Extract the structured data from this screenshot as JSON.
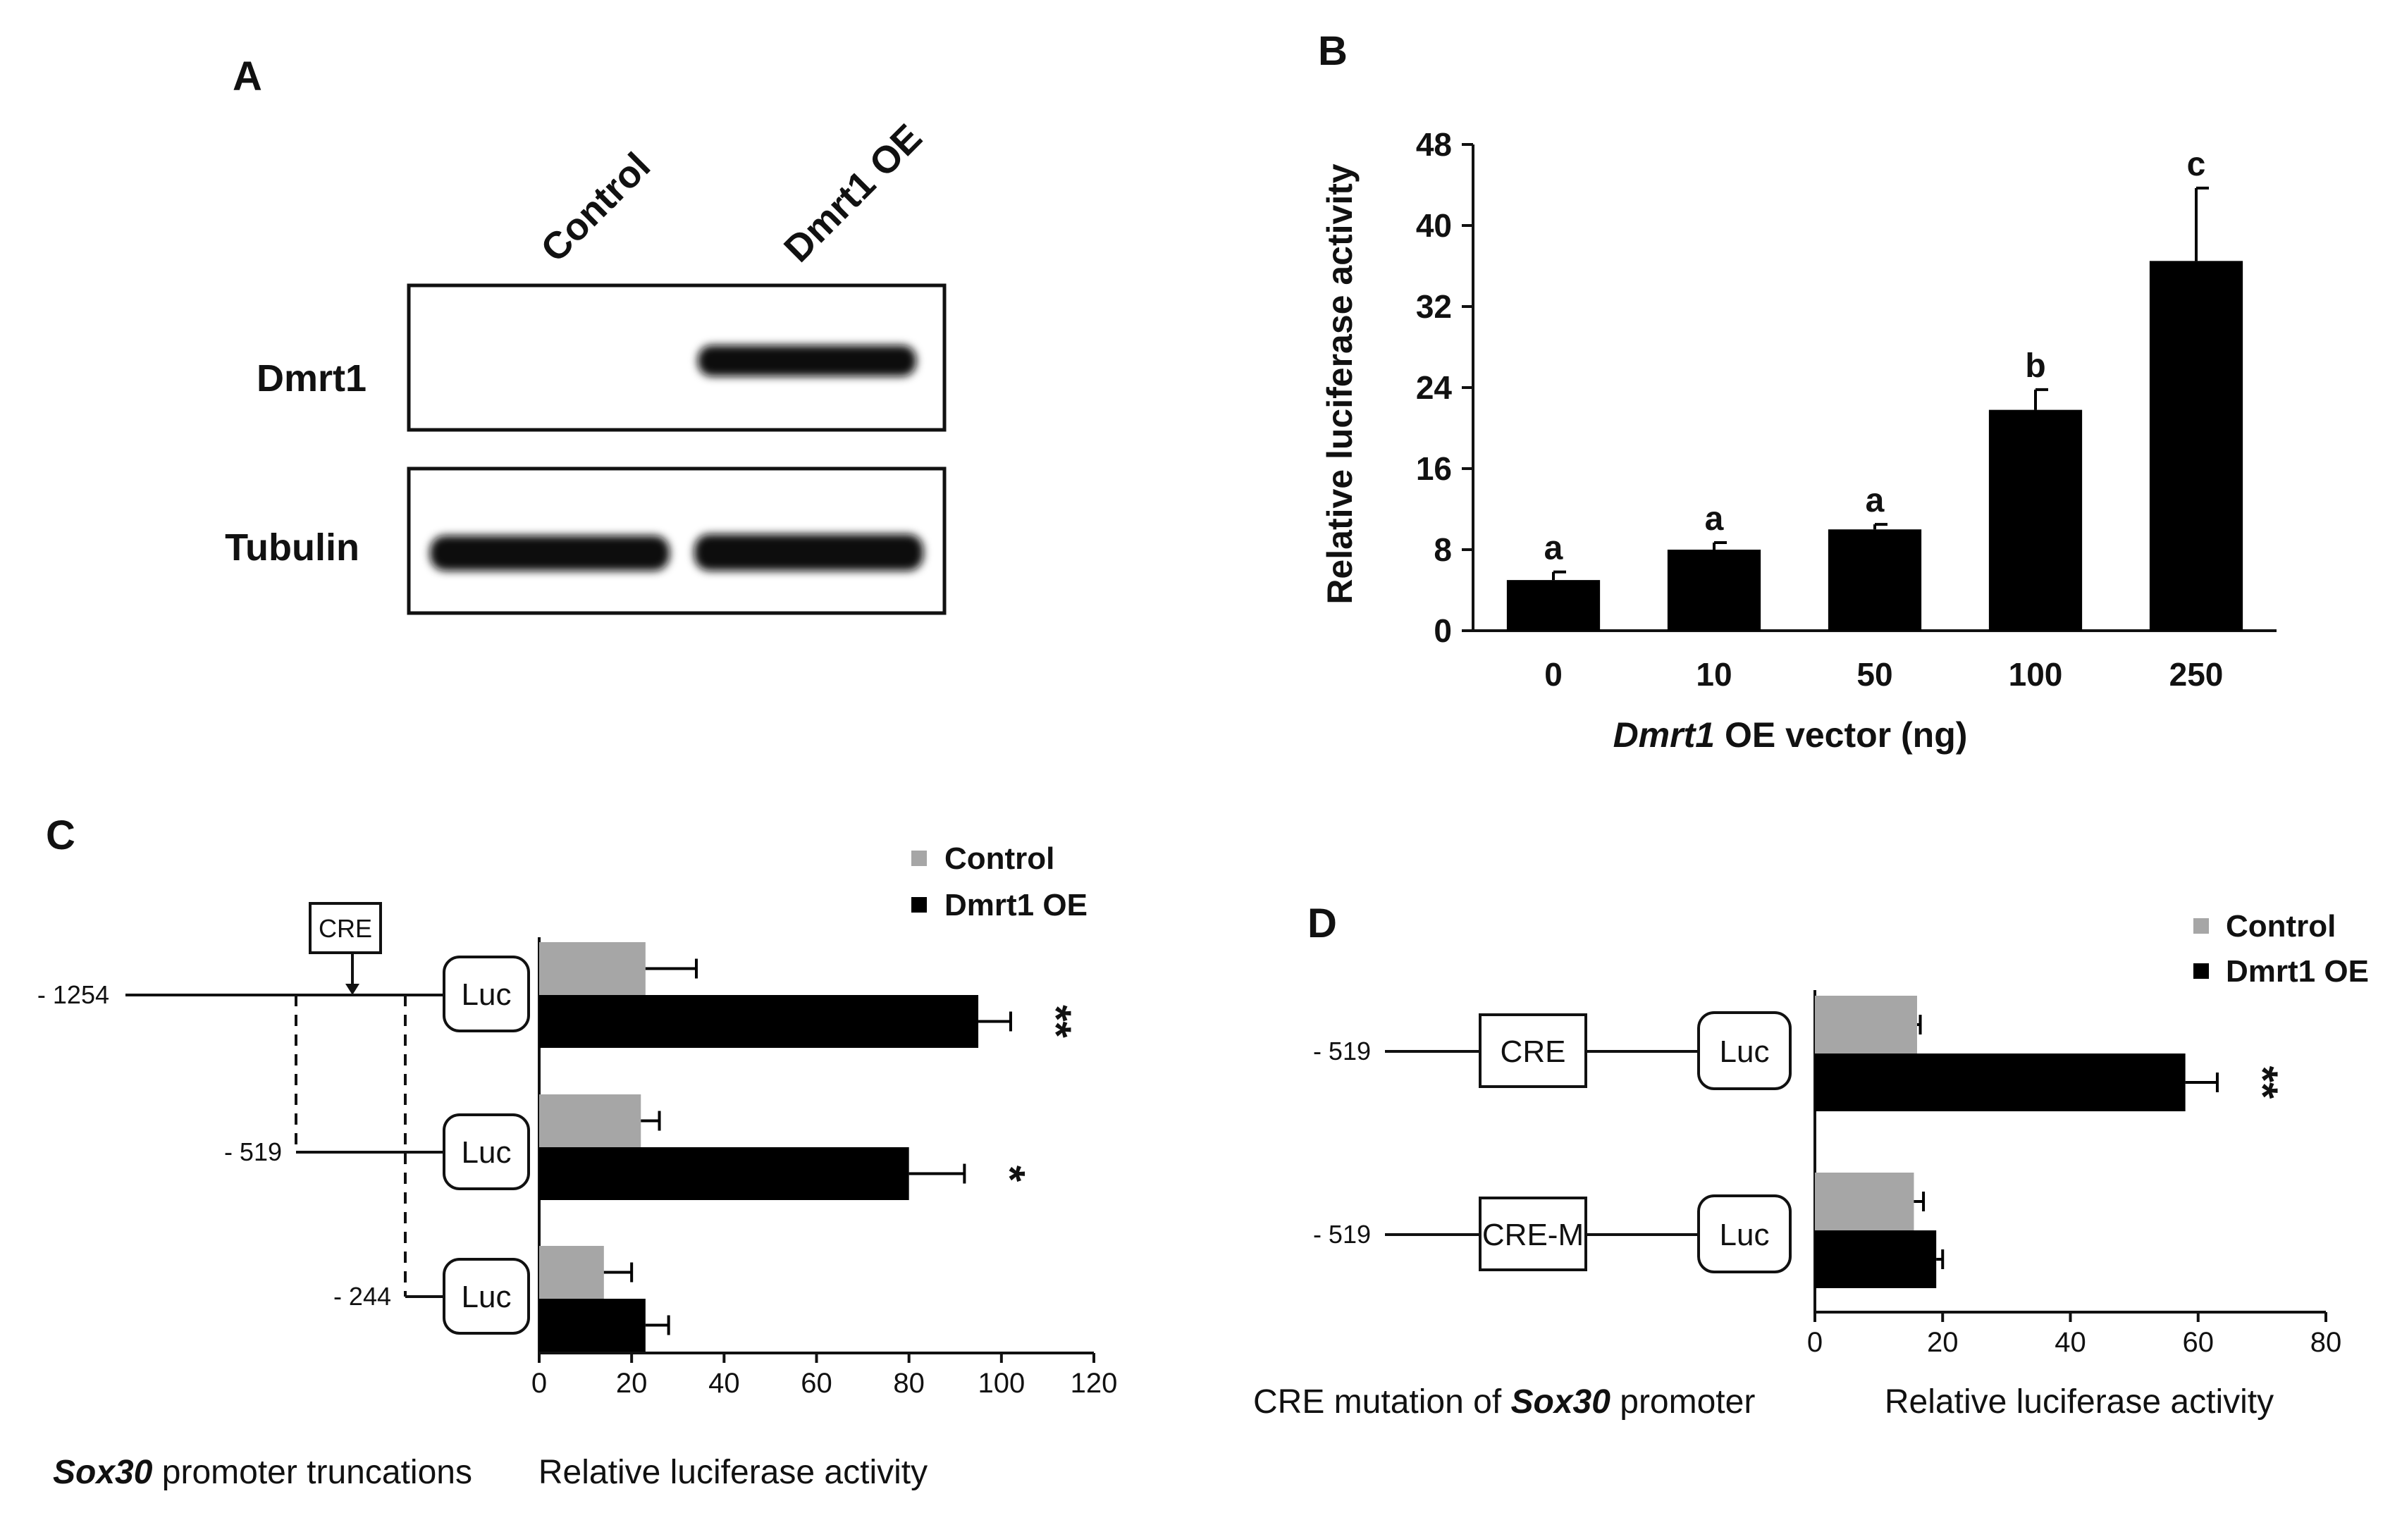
{
  "panelA": {
    "label": "A",
    "lane_labels": [
      "Control",
      "Dmrt1 OE"
    ],
    "row_labels": [
      "Dmrt1",
      "Tubulin"
    ],
    "blot_rows": [
      {
        "name": "Dmrt1",
        "band_intensity": [
          0,
          1
        ]
      },
      {
        "name": "Tubulin",
        "band_intensity": [
          1,
          1
        ]
      }
    ]
  },
  "panelB": {
    "label": "B"
  },
  "panelC": {
    "label": "C",
    "constructs": [
      {
        "position": "- 1254",
        "box": "Luc"
      },
      {
        "position": "- 519",
        "box": "Luc"
      },
      {
        "position": "- 244",
        "box": "Luc"
      }
    ],
    "cre_label": "CRE",
    "caption_italic": "Sox30",
    "caption_rest": " promoter truncations"
  },
  "panelD": {
    "label": "D",
    "constructs": [
      {
        "position": "- 519",
        "element": "CRE",
        "box": "Luc"
      },
      {
        "position": "- 519",
        "element": "CRE-M",
        "box": "Luc"
      }
    ],
    "caption_pre": "CRE mutation of ",
    "caption_italic": "Sox30",
    "caption_post": " promoter"
  },
  "chart_data": [
    {
      "type": "bar",
      "id": "B",
      "categories": [
        "0",
        "10",
        "50",
        "100",
        "250"
      ],
      "values": [
        5.0,
        8.0,
        10.0,
        21.8,
        36.5
      ],
      "errors": [
        0.8,
        0.7,
        0.5,
        2.0,
        7.2
      ],
      "annotations": [
        "a",
        "a",
        "a",
        "b",
        "c"
      ],
      "xlabel_italic": "Dmrt1",
      "xlabel_rest": " OE vector (ng)",
      "ylabel": "Relative luciferase activity",
      "ylim": [
        0,
        48
      ],
      "yticks": [
        "0",
        "8",
        "16",
        "24",
        "32",
        "40",
        "48"
      ]
    },
    {
      "type": "bar",
      "orientation": "horizontal",
      "id": "C",
      "series": [
        {
          "name": "Control",
          "color": "#a6a6a6",
          "values": [
            23,
            22,
            14
          ],
          "errors": [
            11,
            4,
            6
          ]
        },
        {
          "name": "Dmrt1 OE",
          "color": "#000000",
          "values": [
            95,
            80,
            23
          ],
          "errors": [
            7,
            12,
            5
          ]
        }
      ],
      "significance": [
        "**",
        "*",
        ""
      ],
      "xlabel": "Relative luciferase activity",
      "xlim": [
        0,
        120
      ],
      "xticks": [
        "0",
        "20",
        "40",
        "60",
        "80",
        "100",
        "120"
      ]
    },
    {
      "type": "bar",
      "orientation": "horizontal",
      "id": "D",
      "series": [
        {
          "name": "Control",
          "color": "#a6a6a6",
          "values": [
            16,
            15.5
          ],
          "errors": [
            0.5,
            1.5
          ]
        },
        {
          "name": "Dmrt1 OE",
          "color": "#000000",
          "values": [
            58,
            19
          ],
          "errors": [
            5,
            1
          ]
        }
      ],
      "significance": [
        "**",
        ""
      ],
      "xlabel": "Relative luciferase activity",
      "xlim": [
        0,
        80
      ],
      "xticks": [
        "0",
        "20",
        "40",
        "60",
        "80"
      ]
    }
  ]
}
